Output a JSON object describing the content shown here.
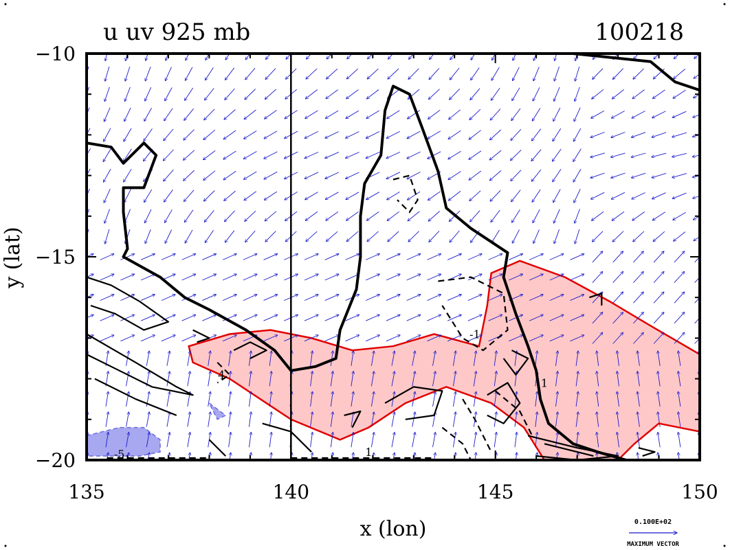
{
  "chart_data": {
    "type": "contour",
    "title_left": "u uv 925 mb",
    "title_right": "100218",
    "xlabel": "x (lon)",
    "ylabel": "y (lat)",
    "xlim": [
      135,
      150
    ],
    "ylim": [
      -20,
      -10
    ],
    "xticks": [
      135,
      140,
      145,
      150
    ],
    "yticks": [
      -10,
      -15,
      -20
    ],
    "xtick_labels": [
      "135",
      "140",
      "145",
      "150"
    ],
    "ytick_labels": [
      "−10",
      "−15",
      "−20"
    ],
    "vector_legend": {
      "value_label": "0.100E+02",
      "caption": "MAXIMUM VECTOR"
    },
    "contour_labels": [
      {
        "text": "4",
        "lon": 138.3,
        "lat": -18.0
      },
      {
        "text": "1",
        "lon": 146.2,
        "lat": -18.2
      },
      {
        "text": "-1",
        "lon": 144.5,
        "lat": -17.0
      },
      {
        "text": "1",
        "lon": 141.9,
        "lat": -19.9
      },
      {
        "text": "-5",
        "lon": 135.8,
        "lat": -19.95
      }
    ],
    "colors": {
      "vector": "#1a1acc",
      "positive_fill": "#ffc8c8",
      "positive_contour": "#e00000",
      "negative_fill": "#a8a8f0",
      "contour": "#000000"
    },
    "coastline": [
      [
        135.0,
        -12.2
      ],
      [
        135.6,
        -12.3
      ],
      [
        135.9,
        -12.7
      ],
      [
        136.4,
        -12.2
      ],
      [
        136.7,
        -12.5
      ],
      [
        136.4,
        -13.3
      ],
      [
        135.9,
        -13.3
      ],
      [
        135.9,
        -13.9
      ],
      [
        136.0,
        -14.8
      ],
      [
        135.9,
        -15.0
      ],
      [
        136.8,
        -15.5
      ],
      [
        137.4,
        -16.0
      ],
      [
        138.0,
        -16.3
      ],
      [
        138.9,
        -16.8
      ],
      [
        139.6,
        -17.3
      ],
      [
        140.0,
        -17.8
      ],
      [
        140.6,
        -17.7
      ],
      [
        141.1,
        -17.5
      ],
      [
        141.2,
        -16.8
      ],
      [
        141.6,
        -15.8
      ],
      [
        141.7,
        -15.0
      ],
      [
        141.7,
        -14.0
      ],
      [
        141.8,
        -13.2
      ],
      [
        142.2,
        -12.5
      ],
      [
        142.3,
        -11.4
      ],
      [
        142.5,
        -10.8
      ],
      [
        142.9,
        -11.0
      ],
      [
        143.2,
        -11.8
      ],
      [
        143.6,
        -12.9
      ],
      [
        143.8,
        -13.8
      ],
      [
        144.4,
        -14.3
      ],
      [
        145.3,
        -14.9
      ],
      [
        145.2,
        -15.5
      ],
      [
        145.5,
        -16.4
      ],
      [
        145.8,
        -17.2
      ],
      [
        146.0,
        -17.8
      ],
      [
        146.1,
        -18.5
      ],
      [
        146.3,
        -19.1
      ],
      [
        146.9,
        -19.6
      ],
      [
        147.5,
        -19.8
      ],
      [
        148.2,
        -20.0
      ]
    ],
    "coastline_ne": [
      [
        146.9,
        -10.0
      ],
      [
        148.8,
        -10.2
      ],
      [
        149.4,
        -10.7
      ],
      [
        150.0,
        -10.9
      ]
    ],
    "positive_regions": [
      [
        [
          137.5,
          -17.2
        ],
        [
          138.5,
          -16.9
        ],
        [
          139.5,
          -16.8
        ],
        [
          140.5,
          -17.0
        ],
        [
          141.5,
          -17.3
        ],
        [
          142.5,
          -17.2
        ],
        [
          143.5,
          -16.9
        ],
        [
          144.6,
          -17.2
        ],
        [
          144.8,
          -16.2
        ],
        [
          144.9,
          -15.4
        ],
        [
          145.6,
          -15.1
        ],
        [
          146.7,
          -15.5
        ],
        [
          147.8,
          -16.1
        ],
        [
          148.8,
          -16.7
        ],
        [
          150.0,
          -17.4
        ],
        [
          150.0,
          -19.3
        ],
        [
          149.0,
          -19.1
        ],
        [
          148.4,
          -19.6
        ],
        [
          148.0,
          -20.0
        ],
        [
          146.2,
          -20.0
        ],
        [
          145.7,
          -19.2
        ],
        [
          144.9,
          -18.6
        ],
        [
          143.8,
          -18.2
        ],
        [
          142.8,
          -18.6
        ],
        [
          141.9,
          -19.2
        ],
        [
          141.2,
          -19.5
        ],
        [
          140.0,
          -19.0
        ],
        [
          138.5,
          -18.0
        ],
        [
          137.6,
          -17.6
        ]
      ]
    ],
    "negative_regions": [
      [
        [
          135.0,
          -19.4
        ],
        [
          135.8,
          -19.2
        ],
        [
          136.4,
          -19.2
        ],
        [
          136.8,
          -19.5
        ],
        [
          136.8,
          -19.8
        ],
        [
          136.3,
          -19.9
        ],
        [
          135.0,
          -19.9
        ]
      ],
      [
        [
          138.0,
          -18.6
        ],
        [
          138.4,
          -18.9
        ],
        [
          138.2,
          -19.0
        ]
      ]
    ],
    "black_solid_contours": [
      [
        [
          135.0,
          -15.5
        ],
        [
          135.6,
          -15.7
        ],
        [
          136.3,
          -16.1
        ],
        [
          137.0,
          -16.6
        ],
        [
          136.4,
          -16.8
        ],
        [
          135.7,
          -16.4
        ],
        [
          135.1,
          -16.2
        ]
      ],
      [
        [
          135.0,
          -16.9
        ],
        [
          136.2,
          -17.6
        ],
        [
          137.2,
          -18.2
        ],
        [
          137.6,
          -18.4
        ],
        [
          136.6,
          -18.2
        ],
        [
          135.6,
          -17.7
        ],
        [
          135.0,
          -17.4
        ]
      ],
      [
        [
          135.2,
          -18.0
        ],
        [
          136.2,
          -18.5
        ],
        [
          137.2,
          -18.9
        ]
      ],
      [
        [
          138.6,
          -17.3
        ],
        [
          139.0,
          -17.1
        ],
        [
          139.4,
          -17.3
        ],
        [
          139.0,
          -17.5
        ]
      ],
      [
        [
          137.6,
          -16.8
        ],
        [
          138.0,
          -17.0
        ],
        [
          137.7,
          -17.1
        ]
      ],
      [
        [
          141.3,
          -18.9
        ],
        [
          141.7,
          -18.8
        ],
        [
          141.5,
          -19.2
        ]
      ],
      [
        [
          142.3,
          -18.6
        ],
        [
          143.0,
          -18.2
        ],
        [
          143.7,
          -18.3
        ],
        [
          143.5,
          -18.9
        ],
        [
          142.8,
          -19.0
        ]
      ],
      [
        [
          144.8,
          -18.4
        ],
        [
          145.3,
          -18.1
        ],
        [
          145.6,
          -18.6
        ],
        [
          145.2,
          -19.1
        ],
        [
          144.8,
          -18.9
        ]
      ],
      [
        [
          145.4,
          -17.3
        ],
        [
          145.8,
          -17.5
        ],
        [
          145.5,
          -17.9
        ],
        [
          145.2,
          -17.5
        ]
      ],
      [
        [
          145.8,
          -19.4
        ],
        [
          147.0,
          -19.7
        ],
        [
          148.0,
          -19.9
        ],
        [
          147.0,
          -20.0
        ],
        [
          146.0,
          -19.9
        ]
      ],
      [
        [
          146.2,
          -19.6
        ],
        [
          147.4,
          -19.9
        ]
      ],
      [
        [
          139.3,
          -19.1
        ],
        [
          140.0,
          -19.3
        ],
        [
          140.5,
          -19.8
        ]
      ],
      [
        [
          138.0,
          -19.5
        ],
        [
          138.4,
          -19.9
        ]
      ],
      [
        [
          147.3,
          -16.0
        ],
        [
          147.6,
          -15.9
        ],
        [
          147.6,
          -16.2
        ]
      ],
      [
        [
          148.5,
          -19.7
        ],
        [
          148.9,
          -19.8
        ],
        [
          148.6,
          -19.9
        ]
      ]
    ],
    "black_dashed_contours": [
      [
        [
          142.5,
          -13.1
        ],
        [
          142.9,
          -13.0
        ],
        [
          143.1,
          -13.6
        ],
        [
          142.9,
          -13.9
        ],
        [
          142.6,
          -13.6
        ]
      ],
      [
        [
          143.6,
          -15.6
        ],
        [
          144.4,
          -15.5
        ],
        [
          145.2,
          -15.9
        ],
        [
          145.3,
          -16.8
        ],
        [
          144.7,
          -17.3
        ],
        [
          144.2,
          -17.0
        ],
        [
          143.7,
          -16.2
        ]
      ],
      [
        [
          143.7,
          -19.2
        ],
        [
          144.2,
          -19.6
        ],
        [
          144.4,
          -20.0
        ]
      ],
      [
        [
          144.2,
          -18.5
        ],
        [
          144.5,
          -19.0
        ],
        [
          144.9,
          -19.8
        ]
      ],
      [
        [
          145.0,
          -18.3
        ],
        [
          145.6,
          -18.8
        ],
        [
          145.9,
          -19.4
        ]
      ],
      [
        [
          138.2,
          -17.6
        ],
        [
          138.5,
          -17.9
        ],
        [
          138.2,
          -18.1
        ]
      ],
      [
        [
          135.5,
          -19.95
        ],
        [
          138.0,
          -19.95
        ]
      ],
      [
        [
          140.0,
          -19.95
        ],
        [
          143.5,
          -19.95
        ]
      ]
    ]
  }
}
